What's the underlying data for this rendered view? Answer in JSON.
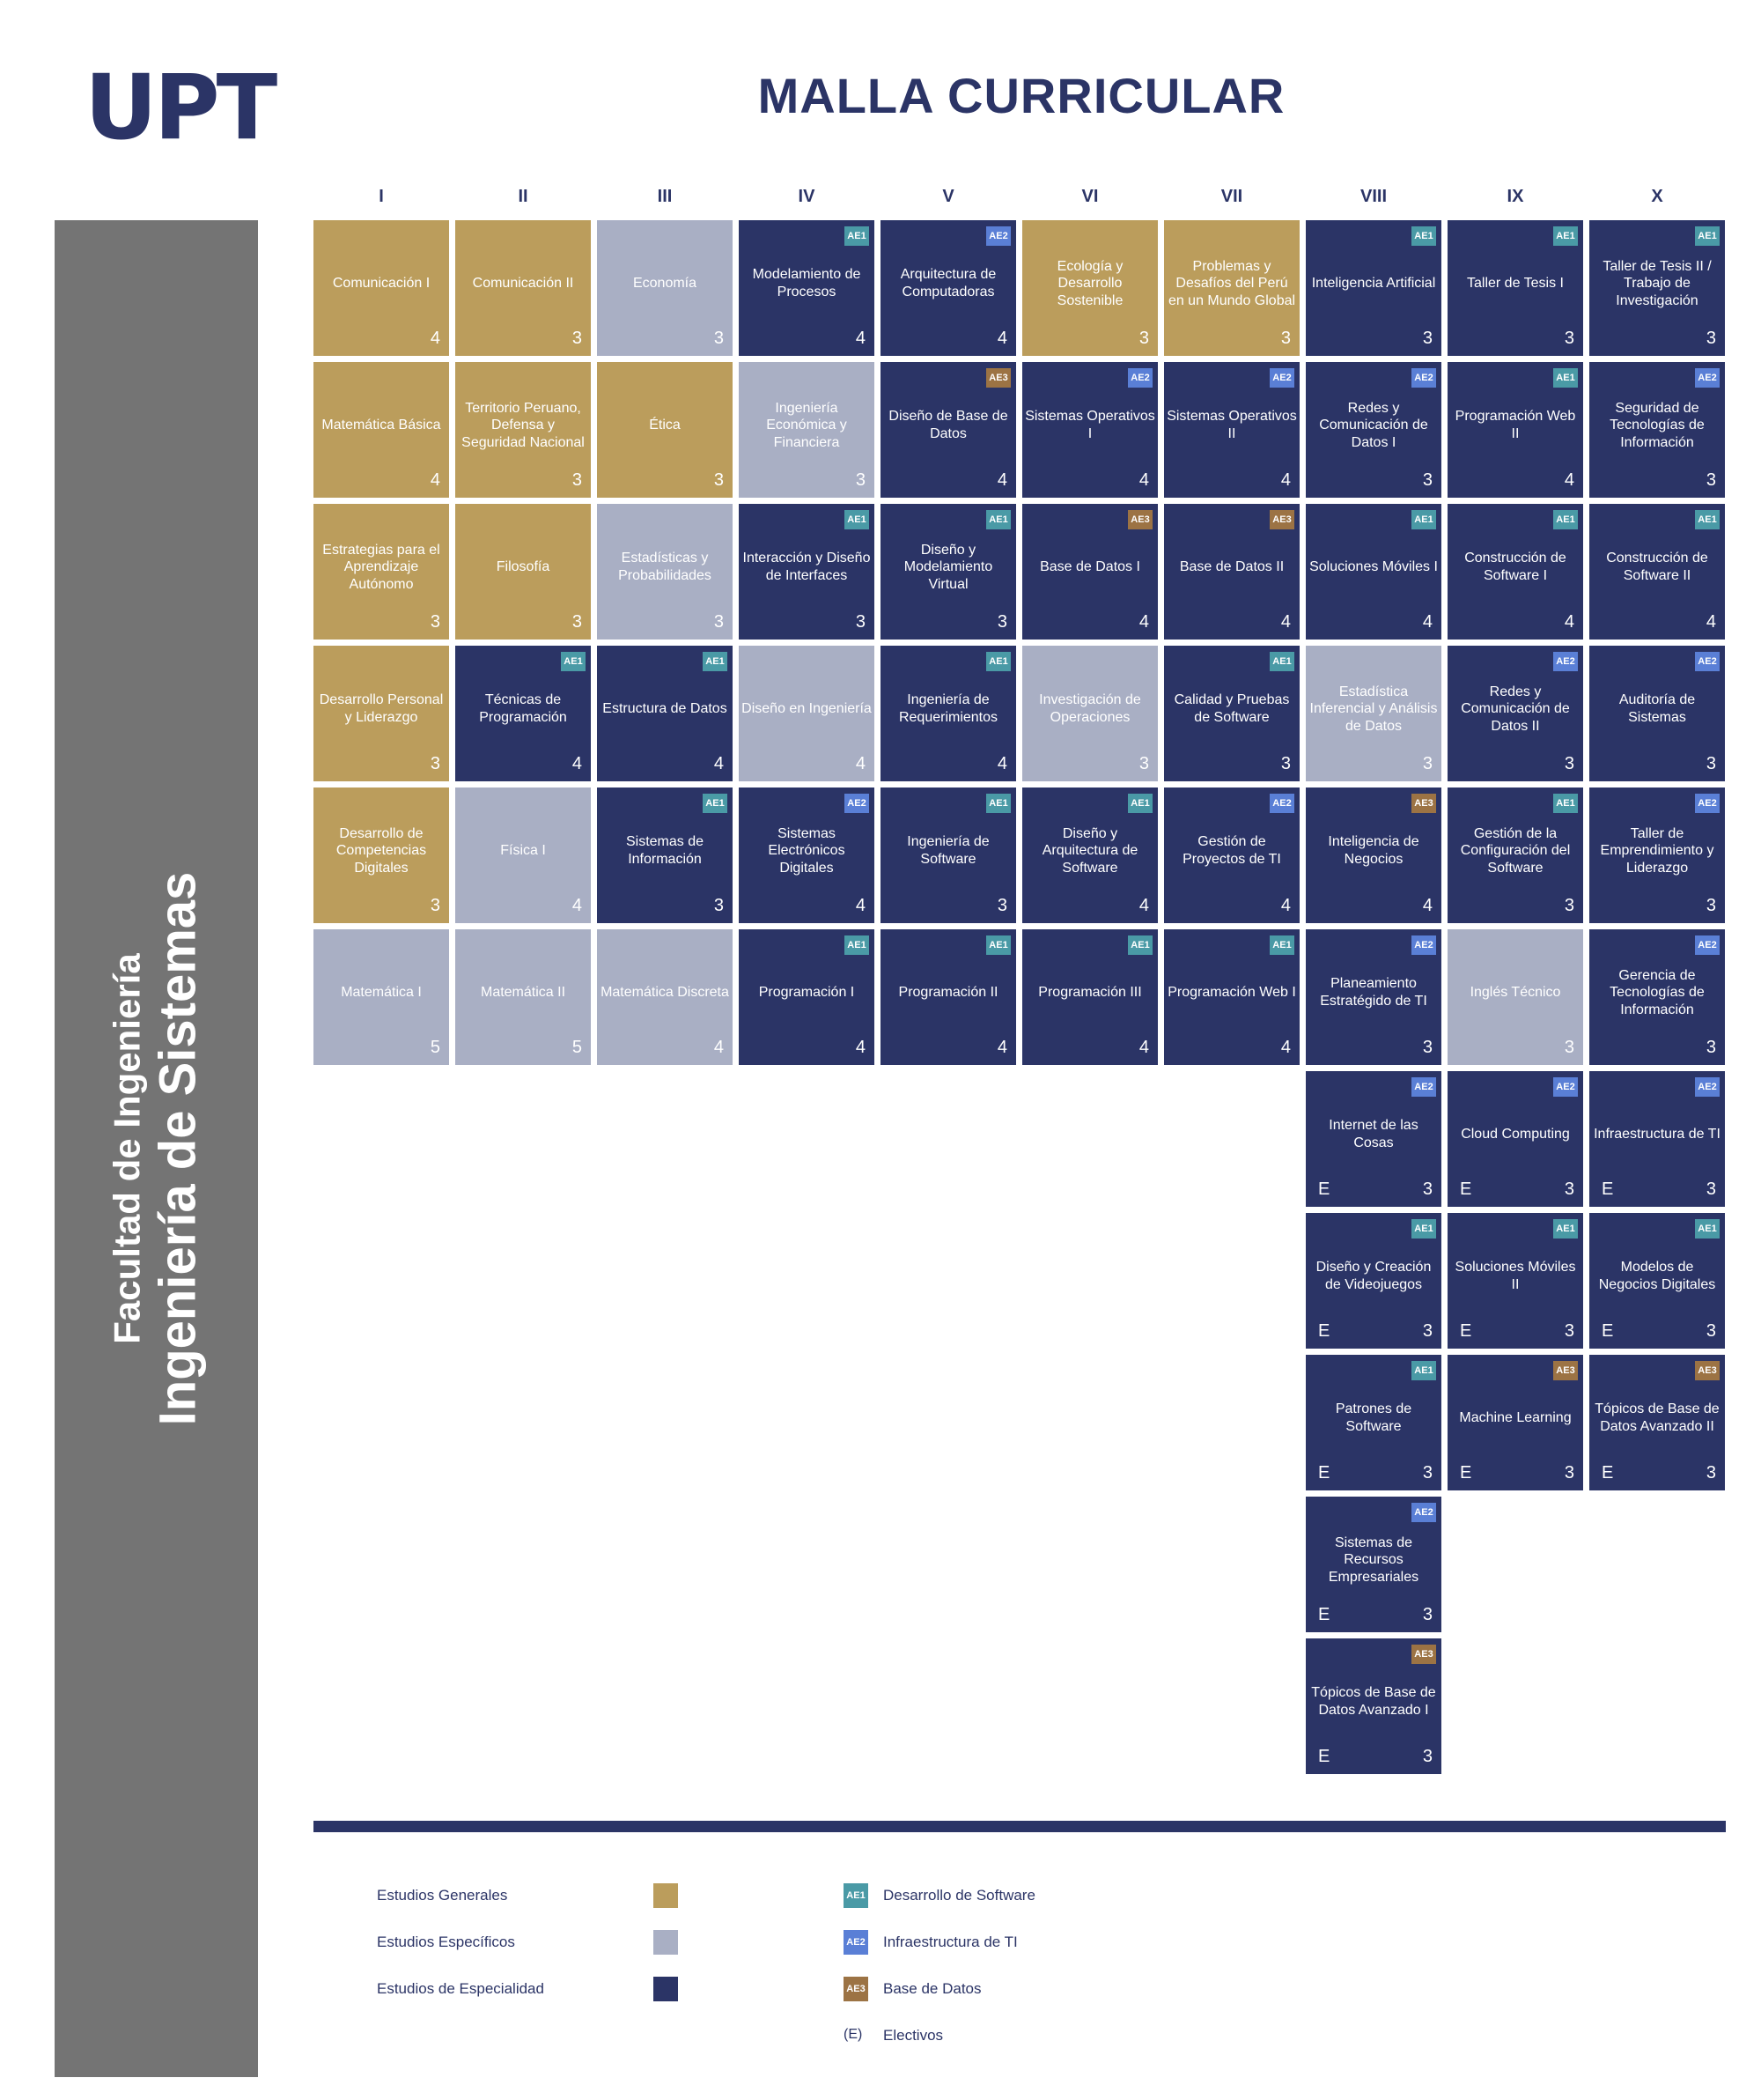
{
  "logo": "UPT",
  "title": "MALLA CURRICULAR",
  "sidebar": {
    "faculty": "Facultad de Ingeniería",
    "career": "Ingeniería de Sistemas"
  },
  "colors": {
    "generales": "#bb9d5c",
    "especificos": "#a9afc4",
    "especialidad": "#2b3466",
    "ae1": "#4a9aa6",
    "ae2": "#5a7fd6",
    "ae3": "#9c7344"
  },
  "semesters": [
    "I",
    "II",
    "III",
    "IV",
    "V",
    "VI",
    "VII",
    "VIII",
    "IX",
    "X"
  ],
  "courses": [
    {
      "name": "Comunicación I",
      "credits": "4",
      "type": "g",
      "sem": 0,
      "row": 0
    },
    {
      "name": "Comunicación II",
      "credits": "3",
      "type": "g",
      "sem": 1,
      "row": 0
    },
    {
      "name": "Economía",
      "credits": "3",
      "type": "s",
      "sem": 2,
      "row": 0
    },
    {
      "name": "Modelamiento de Procesos",
      "credits": "4",
      "type": "e",
      "sem": 3,
      "row": 0,
      "badge": "AE1"
    },
    {
      "name": "Arquitectura de Computadoras",
      "credits": "4",
      "type": "e",
      "sem": 4,
      "row": 0,
      "badge": "AE2"
    },
    {
      "name": "Ecología y Desarrollo Sostenible",
      "credits": "3",
      "type": "g",
      "sem": 5,
      "row": 0
    },
    {
      "name": "Problemas y Desafíos del Perú en un Mundo Global",
      "credits": "3",
      "type": "g",
      "sem": 6,
      "row": 0
    },
    {
      "name": "Inteligencia Artificial",
      "credits": "3",
      "type": "e",
      "sem": 7,
      "row": 0,
      "badge": "AE1"
    },
    {
      "name": "Taller de Tesis I",
      "credits": "3",
      "type": "e",
      "sem": 8,
      "row": 0,
      "badge": "AE1"
    },
    {
      "name": "Taller de Tesis II / Trabajo de Investigación",
      "credits": "3",
      "type": "e",
      "sem": 9,
      "row": 0,
      "badge": "AE1"
    },
    {
      "name": "Matemática Básica",
      "credits": "4",
      "type": "g",
      "sem": 0,
      "row": 1
    },
    {
      "name": "Territorio Peruano, Defensa y Seguridad Nacional",
      "credits": "3",
      "type": "g",
      "sem": 1,
      "row": 1
    },
    {
      "name": "Ética",
      "credits": "3",
      "type": "g",
      "sem": 2,
      "row": 1
    },
    {
      "name": "Ingeniería Económica y Financiera",
      "credits": "3",
      "type": "s",
      "sem": 3,
      "row": 1
    },
    {
      "name": "Diseño de Base de Datos",
      "credits": "4",
      "type": "e",
      "sem": 4,
      "row": 1,
      "badge": "AE3"
    },
    {
      "name": "Sistemas Operativos I",
      "credits": "4",
      "type": "e",
      "sem": 5,
      "row": 1,
      "badge": "AE2"
    },
    {
      "name": "Sistemas Operativos II",
      "credits": "4",
      "type": "e",
      "sem": 6,
      "row": 1,
      "badge": "AE2"
    },
    {
      "name": "Redes y Comunicación de Datos I",
      "credits": "3",
      "type": "e",
      "sem": 7,
      "row": 1,
      "badge": "AE2"
    },
    {
      "name": "Programación Web II",
      "credits": "4",
      "type": "e",
      "sem": 8,
      "row": 1,
      "badge": "AE1"
    },
    {
      "name": "Seguridad de Tecnologías de Información",
      "credits": "3",
      "type": "e",
      "sem": 9,
      "row": 1,
      "badge": "AE2"
    },
    {
      "name": "Estrategias para el Aprendizaje Autónomo",
      "credits": "3",
      "type": "g",
      "sem": 0,
      "row": 2
    },
    {
      "name": "Filosofía",
      "credits": "3",
      "type": "g",
      "sem": 1,
      "row": 2
    },
    {
      "name": "Estadísticas y Probabilidades",
      "credits": "3",
      "type": "s",
      "sem": 2,
      "row": 2
    },
    {
      "name": "Interacción y Diseño de Interfaces",
      "credits": "3",
      "type": "e",
      "sem": 3,
      "row": 2,
      "badge": "AE1"
    },
    {
      "name": "Diseño y Modelamiento Virtual",
      "credits": "3",
      "type": "e",
      "sem": 4,
      "row": 2,
      "badge": "AE1"
    },
    {
      "name": "Base de Datos I",
      "credits": "4",
      "type": "e",
      "sem": 5,
      "row": 2,
      "badge": "AE3"
    },
    {
      "name": "Base de Datos II",
      "credits": "4",
      "type": "e",
      "sem": 6,
      "row": 2,
      "badge": "AE3"
    },
    {
      "name": "Soluciones Móviles I",
      "credits": "4",
      "type": "e",
      "sem": 7,
      "row": 2,
      "badge": "AE1"
    },
    {
      "name": "Construcción de Software I",
      "credits": "4",
      "type": "e",
      "sem": 8,
      "row": 2,
      "badge": "AE1"
    },
    {
      "name": "Construcción de Software II",
      "credits": "4",
      "type": "e",
      "sem": 9,
      "row": 2,
      "badge": "AE1"
    },
    {
      "name": "Desarrollo Personal y Liderazgo",
      "credits": "3",
      "type": "g",
      "sem": 0,
      "row": 3
    },
    {
      "name": "Técnicas de Programación",
      "credits": "4",
      "type": "e",
      "sem": 1,
      "row": 3,
      "badge": "AE1"
    },
    {
      "name": "Estructura de Datos",
      "credits": "4",
      "type": "e",
      "sem": 2,
      "row": 3,
      "badge": "AE1"
    },
    {
      "name": "Diseño en Ingeniería",
      "credits": "4",
      "type": "s",
      "sem": 3,
      "row": 3
    },
    {
      "name": "Ingeniería de Requerimientos",
      "credits": "4",
      "type": "e",
      "sem": 4,
      "row": 3,
      "badge": "AE1"
    },
    {
      "name": "Investigación de Operaciones",
      "credits": "3",
      "type": "s",
      "sem": 5,
      "row": 3
    },
    {
      "name": "Calidad y Pruebas de Software",
      "credits": "3",
      "type": "e",
      "sem": 6,
      "row": 3,
      "badge": "AE1"
    },
    {
      "name": "Estadística Inferencial y Análisis de Datos",
      "credits": "3",
      "type": "s",
      "sem": 7,
      "row": 3
    },
    {
      "name": "Redes y Comunicación de Datos II",
      "credits": "3",
      "type": "e",
      "sem": 8,
      "row": 3,
      "badge": "AE2"
    },
    {
      "name": "Auditoría de Sistemas",
      "credits": "3",
      "type": "e",
      "sem": 9,
      "row": 3,
      "badge": "AE2"
    },
    {
      "name": "Desarrollo de Competencias Digitales",
      "credits": "3",
      "type": "g",
      "sem": 0,
      "row": 4
    },
    {
      "name": "Física I",
      "credits": "4",
      "type": "s",
      "sem": 1,
      "row": 4
    },
    {
      "name": "Sistemas de Información",
      "credits": "3",
      "type": "e",
      "sem": 2,
      "row": 4,
      "badge": "AE1"
    },
    {
      "name": "Sistemas Electrónicos Digitales",
      "credits": "4",
      "type": "e",
      "sem": 3,
      "row": 4,
      "badge": "AE2"
    },
    {
      "name": "Ingeniería de Software",
      "credits": "3",
      "type": "e",
      "sem": 4,
      "row": 4,
      "badge": "AE1"
    },
    {
      "name": "Diseño y Arquitectura de Software",
      "credits": "4",
      "type": "e",
      "sem": 5,
      "row": 4,
      "badge": "AE1"
    },
    {
      "name": "Gestión de Proyectos de TI",
      "credits": "4",
      "type": "e",
      "sem": 6,
      "row": 4,
      "badge": "AE2"
    },
    {
      "name": "Inteligencia de Negocios",
      "credits": "4",
      "type": "e",
      "sem": 7,
      "row": 4,
      "badge": "AE3"
    },
    {
      "name": "Gestión de la Configuración del Software",
      "credits": "3",
      "type": "e",
      "sem": 8,
      "row": 4,
      "badge": "AE1"
    },
    {
      "name": "Taller de Emprendimiento y Liderazgo",
      "credits": "3",
      "type": "e",
      "sem": 9,
      "row": 4,
      "badge": "AE2"
    },
    {
      "name": "Matemática I",
      "credits": "5",
      "type": "s",
      "sem": 0,
      "row": 5
    },
    {
      "name": "Matemática II",
      "credits": "5",
      "type": "s",
      "sem": 1,
      "row": 5
    },
    {
      "name": "Matemática Discreta",
      "credits": "4",
      "type": "s",
      "sem": 2,
      "row": 5
    },
    {
      "name": "Programación I",
      "credits": "4",
      "type": "e",
      "sem": 3,
      "row": 5,
      "badge": "AE1"
    },
    {
      "name": "Programación II",
      "credits": "4",
      "type": "e",
      "sem": 4,
      "row": 5,
      "badge": "AE1"
    },
    {
      "name": "Programación III",
      "credits": "4",
      "type": "e",
      "sem": 5,
      "row": 5,
      "badge": "AE1"
    },
    {
      "name": "Programación Web I",
      "credits": "4",
      "type": "e",
      "sem": 6,
      "row": 5,
      "badge": "AE1"
    },
    {
      "name": "Planeamiento Estratégido de TI",
      "credits": "3",
      "type": "e",
      "sem": 7,
      "row": 5,
      "badge": "AE2"
    },
    {
      "name": "Inglés Técnico",
      "credits": "3",
      "type": "s",
      "sem": 8,
      "row": 5
    },
    {
      "name": "Gerencia de Tecnologías de Información",
      "credits": "3",
      "type": "e",
      "sem": 9,
      "row": 5,
      "badge": "AE2"
    },
    {
      "name": "Internet de las Cosas",
      "credits": "3",
      "type": "e",
      "sem": 7,
      "row": 6,
      "badge": "AE2",
      "elective": "E"
    },
    {
      "name": "Cloud Computing",
      "credits": "3",
      "type": "e",
      "sem": 8,
      "row": 6,
      "badge": "AE2",
      "elective": "E"
    },
    {
      "name": "Infraestructura de TI",
      "credits": "3",
      "type": "e",
      "sem": 9,
      "row": 6,
      "badge": "AE2",
      "elective": "E"
    },
    {
      "name": "Diseño y Creación de Videojuegos",
      "credits": "3",
      "type": "e",
      "sem": 7,
      "row": 7,
      "badge": "AE1",
      "elective": "E"
    },
    {
      "name": "Soluciones Móviles II",
      "credits": "3",
      "type": "e",
      "sem": 8,
      "row": 7,
      "badge": "AE1",
      "elective": "E"
    },
    {
      "name": "Modelos de Negocios Digitales",
      "credits": "3",
      "type": "e",
      "sem": 9,
      "row": 7,
      "badge": "AE1",
      "elective": "E"
    },
    {
      "name": "Patrones de Software",
      "credits": "3",
      "type": "e",
      "sem": 7,
      "row": 8,
      "badge": "AE1",
      "elective": "E"
    },
    {
      "name": "Machine Learning",
      "credits": "3",
      "type": "e",
      "sem": 8,
      "row": 8,
      "badge": "AE3",
      "elective": "E"
    },
    {
      "name": "Tópicos de Base de Datos Avanzado II",
      "credits": "3",
      "type": "e",
      "sem": 9,
      "row": 8,
      "badge": "AE3",
      "elective": "E"
    },
    {
      "name": "Sistemas de Recursos Empresariales",
      "credits": "3",
      "type": "e",
      "sem": 7,
      "row": 9,
      "badge": "AE2",
      "elective": "E"
    },
    {
      "name": "Tópicos de Base de Datos Avanzado I",
      "credits": "3",
      "type": "e",
      "sem": 7,
      "row": 10,
      "badge": "AE3",
      "elective": "E"
    }
  ],
  "legend": {
    "generales": "Estudios Generales",
    "especificos": "Estudios Específicos",
    "especialidad": "Estudios de Especialidad",
    "ae1_badge": "AE1",
    "ae1": "Desarrollo de Software",
    "ae2_badge": "AE2",
    "ae2": "Infraestructura de TI",
    "ae3_badge": "AE3",
    "ae3": "Base de Datos",
    "elective_mark": "(E)",
    "electives": "Electivos"
  }
}
